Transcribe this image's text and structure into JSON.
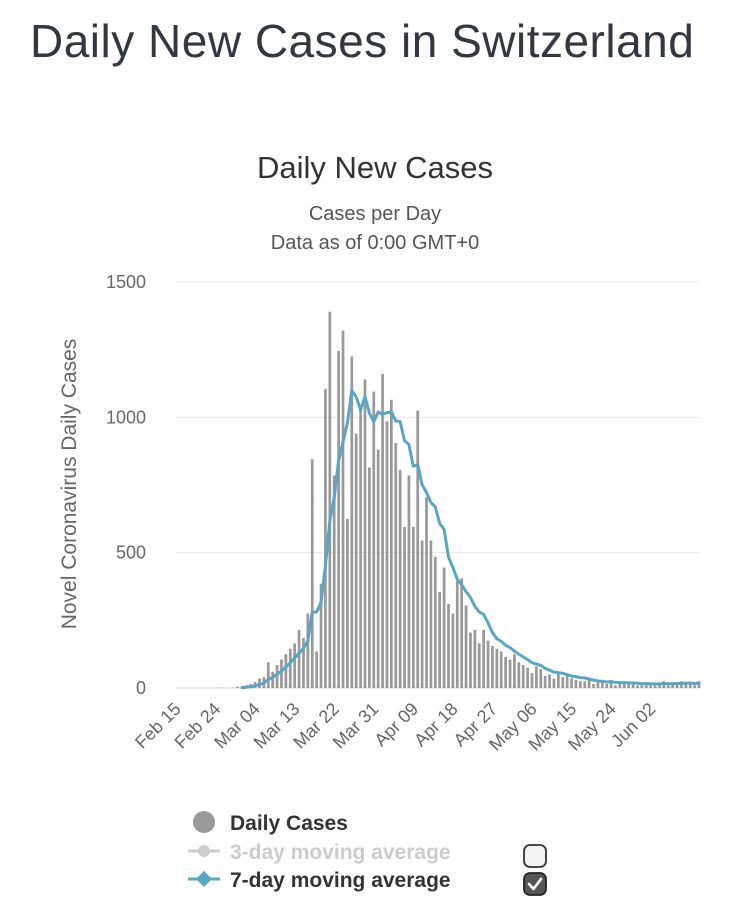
{
  "page": {
    "title": "Daily New Cases in Switzerland"
  },
  "chart_data": {
    "type": "bar",
    "title": "Daily New Cases",
    "subtitle_lines": [
      "Cases per Day",
      "Data as of 0:00 GMT+0"
    ],
    "xlabel": "",
    "ylabel": "Novel Coronavirus Daily Cases",
    "ylim": [
      0,
      1500
    ],
    "y_ticks": [
      0,
      500,
      1000,
      1500
    ],
    "grid": true,
    "x_tick_labels": [
      "Feb 15",
      "Feb 24",
      "Mar 04",
      "Mar 13",
      "Mar 22",
      "Mar 31",
      "Apr 09",
      "Apr 18",
      "Apr 27",
      "May 06",
      "May 15",
      "May 24",
      "Jun 02"
    ],
    "start_date": "Feb 15",
    "daily_cases": [
      0,
      0,
      0,
      0,
      0,
      0,
      0,
      0,
      0,
      0,
      1,
      0,
      0,
      1,
      5,
      3,
      10,
      15,
      22,
      35,
      40,
      95,
      60,
      85,
      105,
      125,
      145,
      165,
      215,
      185,
      275,
      845,
      135,
      385,
      1105,
      1390,
      785,
      1245,
      1320,
      625,
      1225,
      940,
      1045,
      1140,
      815,
      1095,
      880,
      1160,
      985,
      1065,
      905,
      805,
      595,
      785,
      595,
      1025,
      545,
      705,
      545,
      485,
      355,
      445,
      310,
      275,
      395,
      405,
      305,
      205,
      215,
      165,
      215,
      175,
      155,
      145,
      135,
      115,
      105,
      125,
      95,
      85,
      75,
      55,
      80,
      70,
      45,
      50,
      35,
      60,
      40,
      45,
      35,
      30,
      25,
      25,
      30,
      15,
      20,
      25,
      15,
      30,
      10,
      25,
      15,
      15,
      20,
      10,
      15,
      15,
      20,
      10,
      15,
      25,
      10,
      20,
      15,
      25,
      15,
      20,
      10,
      25
    ],
    "series": [
      {
        "name": "Daily Cases",
        "color": "#999999",
        "shown": true
      },
      {
        "name": "3-day moving average",
        "color": "#cccccc",
        "shown": false
      },
      {
        "name": "7-day moving average",
        "color": "#5aa5c4",
        "shown": true
      }
    ],
    "legend_position": "bottom"
  },
  "legend": {
    "daily_cases_label": "Daily Cases",
    "ma3_label": "3-day moving average",
    "ma7_label": "7-day moving average",
    "ma3_checked": false,
    "ma7_checked": true
  }
}
